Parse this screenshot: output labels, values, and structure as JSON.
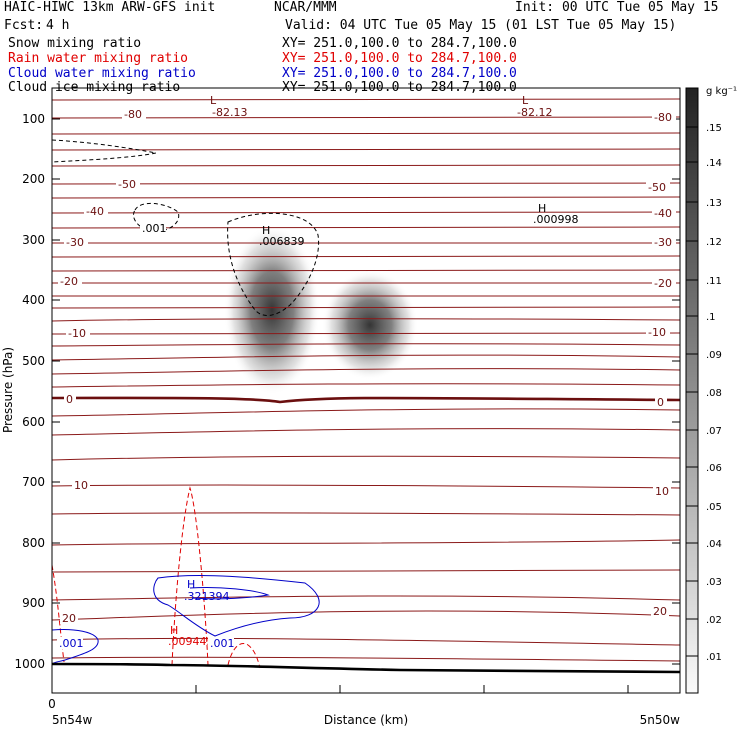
{
  "header": {
    "left_title": "HAIC-HIWC 13km ARW-GFS init",
    "center_title": "NCAR/MMM",
    "init": "Init: 00 UTC Tue 05 May 15",
    "fcst_label": "Fcst:",
    "fcst_value": "4 h",
    "valid": "Valid: 04 UTC Tue 05 May 15 (01 LST Tue 05 May 15)"
  },
  "fields": [
    {
      "name": "Snow mixing ratio",
      "xy": "XY= 251.0,100.0 to 284.7,100.0",
      "color": "#000000"
    },
    {
      "name": "Rain water mixing ratio",
      "xy": "XY= 251.0,100.0 to 284.7,100.0",
      "color": "#e00000"
    },
    {
      "name": "Cloud water mixing ratio",
      "xy": "XY= 251.0,100.0 to 284.7,100.0",
      "color": "#0000c8"
    },
    {
      "name": "Cloud ice mixing ratio",
      "xy": "XY= 251.0,100.0 to 284.7,100.0",
      "color": "#000000"
    }
  ],
  "colors": {
    "temperature": "#8b1a1a",
    "rain": "#e00000",
    "cloud_water": "#0000c8",
    "snow_shade": "#333333"
  },
  "chart_data": {
    "type": "heatmap",
    "ylabel": "Pressure (hPa)",
    "xlabel": "Distance (km)",
    "y_ticks": [
      "100",
      "200",
      "300",
      "400",
      "500",
      "600",
      "700",
      "800",
      "900",
      "1000"
    ],
    "x_tick_zero": "0",
    "x_start_label": "5n54w",
    "x_end_label": "5n50w",
    "colorbar": {
      "unit": "g kg⁻¹",
      "ticks": [
        ".15",
        ".14",
        ".13",
        ".12",
        ".11",
        ".1",
        ".09",
        ".08",
        ".07",
        ".06",
        ".05",
        ".04",
        ".03",
        ".02",
        ".01"
      ]
    },
    "temperature_labels": [
      {
        "text": "-80",
        "side": "both"
      },
      {
        "text": "-50",
        "side": "both"
      },
      {
        "text": "-40",
        "side": "both"
      },
      {
        "text": "-30",
        "side": "both"
      },
      {
        "text": "-20",
        "side": "both"
      },
      {
        "text": "-10",
        "side": "both"
      },
      {
        "text": "0",
        "side": "both"
      },
      {
        "text": "10",
        "side": "both"
      },
      {
        "text": "20",
        "side": "both"
      }
    ],
    "annotations": {
      "low_left_letter": "L",
      "low_left_value": "-82.13",
      "low_right_letter": "L",
      "low_right_value": "-82.12",
      "ice_high_letter": "H",
      "ice_high_value": ".006839",
      "ice_high2_letter": "H",
      "ice_high2_value": ".000998",
      "ice_min_value": ".001",
      "cw_high_letter": "H",
      "cw_high_value": ".321394",
      "rain_high_letter": "H",
      "rain_high_value": ".009445",
      "cw_low_value_1": ".001",
      "cw_low_value_2": ".001"
    }
  }
}
